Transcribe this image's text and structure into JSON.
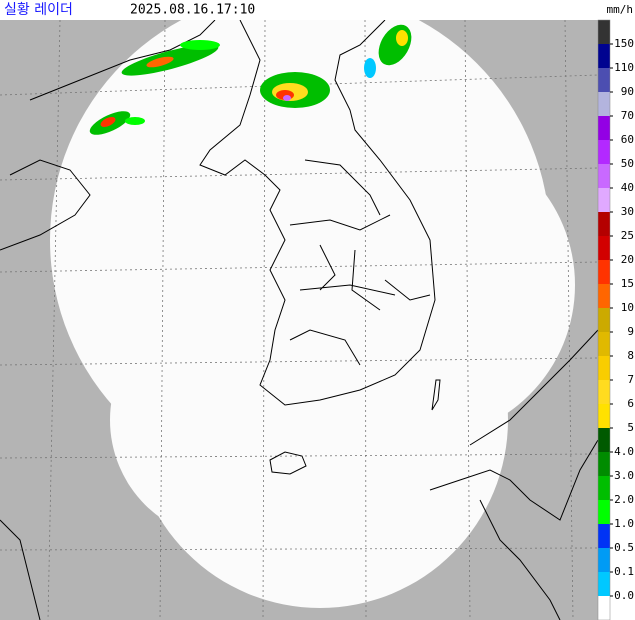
{
  "header": {
    "title": "실황 레이더",
    "time": "2025.08.16.17:10",
    "unit": "mm/h"
  },
  "legend": {
    "labels": [
      "150",
      "110",
      "90",
      "70",
      "60",
      "50",
      "40",
      "30",
      "25",
      "20",
      "15",
      "10",
      "9",
      "8",
      "7",
      "6",
      "5",
      "4.0",
      "3.0",
      "2.0",
      "1.0",
      "0.5",
      "0.1",
      "0.0"
    ],
    "colors": [
      "#333333",
      "#000390",
      "#4c4eb1",
      "#b3b4de",
      "#9300e4",
      "#b329ff",
      "#c969ff",
      "#e0a9ff",
      "#b40000",
      "#d20000",
      "#ff3300",
      "#ff6600",
      "#ccaa00",
      "#e0b900",
      "#f9cd00",
      "#ffdc1f",
      "#ffe100",
      "#005a00",
      "#008c00",
      "#00be00",
      "#00ff00",
      "#0033f5",
      "#009bf5",
      "#00c8ff",
      "#ffffff"
    ]
  }
}
